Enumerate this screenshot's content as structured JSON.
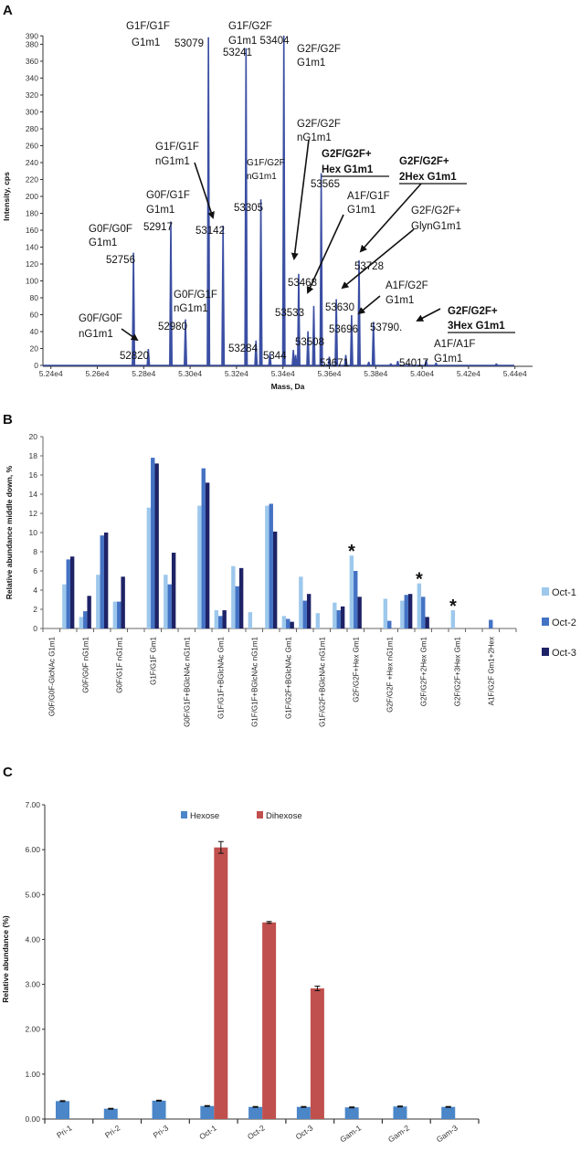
{
  "panel_labels": [
    "A",
    "B",
    "C"
  ],
  "chart_data": [
    {
      "type": "line",
      "title": "",
      "xlabel": "Mass, Da",
      "ylabel": "Intensity, cps",
      "xlim": [
        52400,
        54480
      ],
      "ylim": [
        0,
        390
      ],
      "x_ticks": [
        {
          "value": 52400,
          "label": "5.24e4"
        },
        {
          "value": 52600,
          "label": "5.26e4"
        },
        {
          "value": 52800,
          "label": "5.28e4"
        },
        {
          "value": 53000,
          "label": "5.30e4"
        },
        {
          "value": 53200,
          "label": "5.32e4"
        },
        {
          "value": 53400,
          "label": "5.34e4"
        },
        {
          "value": 53600,
          "label": "5.36e4"
        },
        {
          "value": 53800,
          "label": "5.38e4"
        },
        {
          "value": 54000,
          "label": "5.40e4"
        },
        {
          "value": 54200,
          "label": "5.42e4"
        },
        {
          "value": 54400,
          "label": "5.44e4"
        }
      ],
      "y_ticks": [
        "0",
        "20",
        "40",
        "60",
        "80",
        "100",
        "120",
        "140",
        "160",
        "180",
        "200",
        "220",
        "240",
        "260",
        "280",
        "300",
        "320",
        "340",
        "360",
        "380",
        "390"
      ],
      "line_color": "#3B4FA3",
      "peaks": [
        {
          "mass": 52756,
          "intensity": 133
        },
        {
          "mass": 52820,
          "intensity": 19
        },
        {
          "mass": 52917,
          "intensity": 170
        },
        {
          "mass": 52980,
          "intensity": 54
        },
        {
          "mass": 53079,
          "intensity": 388
        },
        {
          "mass": 53142,
          "intensity": 165
        },
        {
          "mass": 53241,
          "intensity": 375
        },
        {
          "mass": 53284,
          "intensity": 29
        },
        {
          "mass": 53305,
          "intensity": 196
        },
        {
          "mass": 53344,
          "intensity": 14
        },
        {
          "mass": 53404,
          "intensity": 390
        },
        {
          "mass": 53445,
          "intensity": 18
        },
        {
          "mass": 53455,
          "intensity": 12
        },
        {
          "mass": 53468,
          "intensity": 108
        },
        {
          "mass": 53508,
          "intensity": 40
        },
        {
          "mass": 53533,
          "intensity": 70
        },
        {
          "mass": 53565,
          "intensity": 227
        },
        {
          "mass": 53600,
          "intensity": 10
        },
        {
          "mass": 53630,
          "intensity": 78
        },
        {
          "mass": 53671,
          "intensity": 12
        },
        {
          "mass": 53696,
          "intensity": 59
        },
        {
          "mass": 53728,
          "intensity": 124
        },
        {
          "mass": 53770,
          "intensity": 4
        },
        {
          "mass": 53790,
          "intensity": 51
        },
        {
          "mass": 53865,
          "intensity": 2
        },
        {
          "mass": 53895,
          "intensity": 5
        },
        {
          "mass": 54017,
          "intensity": 6
        },
        {
          "mass": 54060,
          "intensity": 3
        },
        {
          "mass": 54320,
          "intensity": 2
        }
      ],
      "annotations": [
        {
          "lines": [
            "G1F/G1F",
            "G1m1"
          ]
        },
        {
          "lines": [
            "53079"
          ]
        },
        {
          "lines": [
            "G1F/G2F",
            "G1m1 53404"
          ]
        },
        {
          "lines": [
            "53241"
          ]
        },
        {
          "lines": [
            "G2F/G2F",
            "G1m1"
          ]
        },
        {
          "lines": [
            "G2F/G2F",
            "nG1m1"
          ]
        },
        {
          "lines": [
            "G1F/G1F",
            "nG1m1"
          ]
        },
        {
          "lines": [
            "53142"
          ]
        },
        {
          "lines": [
            "G1F/G2F",
            "nG1m1"
          ]
        },
        {
          "lines": [
            "G2F/G2F+",
            "Hex  G1m1"
          ],
          "bold": true
        },
        {
          "lines": [
            "53565"
          ]
        },
        {
          "lines": [
            "G2F/G2F+",
            "2Hex G1m1"
          ],
          "bold": true
        },
        {
          "lines": [
            "A1F/G1F",
            "G1m1"
          ]
        },
        {
          "lines": [
            "53305"
          ]
        },
        {
          "lines": [
            "G0F/G1F",
            "G1m1"
          ]
        },
        {
          "lines": [
            "52917"
          ]
        },
        {
          "lines": [
            "G2F/G2F+",
            "GlynG1m1"
          ]
        },
        {
          "lines": [
            "G0F/G0F",
            "G1m1"
          ]
        },
        {
          "lines": [
            "52756"
          ]
        },
        {
          "lines": [
            "53728"
          ]
        },
        {
          "lines": [
            "53468"
          ]
        },
        {
          "lines": [
            "A1F/G2F",
            "G1m1"
          ]
        },
        {
          "lines": [
            "G0F/G1F",
            "nG1m1"
          ]
        },
        {
          "lines": [
            "53533"
          ]
        },
        {
          "lines": [
            "53630"
          ]
        },
        {
          "lines": [
            "G2F/G2F+",
            "3Hex G1m1"
          ],
          "bold": true
        },
        {
          "lines": [
            "G0F/G0F",
            "nG1m1"
          ]
        },
        {
          "lines": [
            "52820"
          ]
        },
        {
          "lines": [
            "52980"
          ]
        },
        {
          "lines": [
            "53696"
          ]
        },
        {
          "lines": [
            "53790."
          ]
        },
        {
          "lines": [
            "53284"
          ]
        },
        {
          "lines": [
            "5344"
          ]
        },
        {
          "lines": [
            "53508"
          ]
        },
        {
          "lines": [
            "53671"
          ]
        },
        {
          "lines": [
            "A1F/A1F",
            "G1m1"
          ]
        },
        {
          "lines": [
            "54017"
          ]
        }
      ]
    },
    {
      "type": "bar",
      "title": "",
      "xlabel": "",
      "ylabel": "Relative abundance middle down, %",
      "ylim": [
        0,
        20
      ],
      "y_ticks": [
        "0",
        "2",
        "4",
        "6",
        "8",
        "10",
        "12",
        "14",
        "16",
        "18",
        "20"
      ],
      "category_slots": 28,
      "categories": [
        "G0F/G0F-GlcNAc G1m1",
        "G0F/G0F nG1m1",
        "G0F/G1F nG1m1",
        "G1F/G1F Gm1",
        "G0F/G1F+BGlcNAc nG1m1",
        "G1F/G1F+BGlcNAc Gm1",
        "G1F/G1F+BGlcNAc nG1m1",
        "G1F/G2F+BGlcNAc Gm1",
        "G1F/G2F+BGlcNAc nG1m1",
        "G2F/G2F+Hex Gm1",
        "G2F/G2F  +Hex nG1m1",
        "G2F/G2F+2Hex Gm1",
        "G2F/G2F+3Hex Gm1",
        "A1F/G2F Gm1+2Hex"
      ],
      "legend": [
        "Oct-1",
        "Oct-2",
        "Oct-3"
      ],
      "legend_position": "right",
      "colors": [
        "#9DC8EC",
        "#4472C4",
        "#1E2266"
      ],
      "groups": [
        {
          "slot": 1,
          "values": [
            4.6,
            7.2,
            7.5
          ]
        },
        {
          "slot": 2,
          "values": [
            1.2,
            1.8,
            3.4
          ]
        },
        {
          "slot": 3,
          "values": [
            5.6,
            9.7,
            10.0
          ]
        },
        {
          "slot": 4,
          "values": [
            2.8,
            2.8,
            5.4
          ]
        },
        {
          "slot": 6,
          "values": [
            12.6,
            17.8,
            17.2
          ]
        },
        {
          "slot": 7,
          "values": [
            5.6,
            4.6,
            7.9
          ]
        },
        {
          "slot": 9,
          "values": [
            12.8,
            16.7,
            15.2
          ]
        },
        {
          "slot": 10,
          "values": [
            1.9,
            1.3,
            1.9
          ]
        },
        {
          "slot": 11,
          "values": [
            6.5,
            4.4,
            6.3
          ]
        },
        {
          "slot": 12,
          "values": [
            1.7,
            0,
            0
          ]
        },
        {
          "slot": 13,
          "values": [
            12.8,
            13.0,
            10.1
          ]
        },
        {
          "slot": 14,
          "values": [
            1.3,
            1.0,
            0.7
          ]
        },
        {
          "slot": 15,
          "values": [
            5.4,
            2.9,
            3.6
          ]
        },
        {
          "slot": 16,
          "values": [
            1.6,
            0,
            0
          ]
        },
        {
          "slot": 17,
          "values": [
            2.7,
            1.9,
            2.3
          ]
        },
        {
          "slot": 18,
          "values": [
            7.6,
            6.0,
            3.3
          ],
          "marker": "*"
        },
        {
          "slot": 20,
          "values": [
            3.1,
            0.8,
            0
          ]
        },
        {
          "slot": 21,
          "values": [
            2.9,
            3.5,
            3.6
          ]
        },
        {
          "slot": 22,
          "values": [
            4.7,
            3.3,
            1.2
          ],
          "marker": "*"
        },
        {
          "slot": 24,
          "values": [
            1.9,
            0,
            0
          ],
          "marker": "*"
        },
        {
          "slot": 26,
          "values": [
            0,
            0.9,
            0
          ]
        }
      ]
    },
    {
      "type": "bar",
      "title": "",
      "xlabel": "",
      "ylabel": "Relative abundance (%)",
      "ylim": [
        0,
        7
      ],
      "y_ticks": [
        "0.00",
        "1.00",
        "2.00",
        "3.00",
        "4.00",
        "5.00",
        "6.00",
        "7.00"
      ],
      "categories": [
        "Pri-1",
        "Pri-2",
        "Pri-3",
        "Oct-1",
        "Oct-2",
        "Oct-3",
        "Gam-1",
        "Gam-2",
        "Gam-3"
      ],
      "legend_position": "top-center",
      "series": [
        {
          "name": "Hexose",
          "color": "#4A86C8",
          "values": [
            0.4,
            0.23,
            0.41,
            0.29,
            0.27,
            0.27,
            0.26,
            0.28,
            0.27
          ],
          "errors": [
            0.01,
            0.01,
            0.01,
            0.01,
            0.01,
            0.01,
            0.01,
            0.01,
            0.01
          ]
        },
        {
          "name": "Dihexose",
          "color": "#C0504D",
          "values": [
            null,
            null,
            null,
            6.05,
            4.38,
            2.91,
            null,
            null,
            null
          ],
          "errors": [
            null,
            null,
            null,
            0.13,
            0.02,
            0.05,
            null,
            null,
            null
          ]
        }
      ]
    }
  ]
}
